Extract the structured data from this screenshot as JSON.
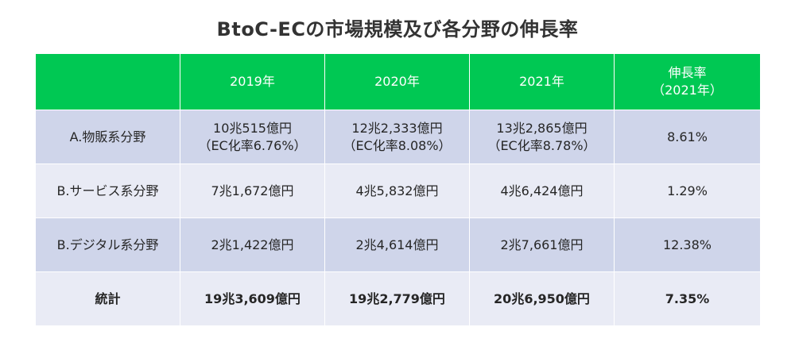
{
  "title": "BtoC-ECの市場規模及び各分野の伸長率",
  "table": {
    "headers": [
      "",
      "2019年",
      "2020年",
      "2021年",
      "伸長率",
      "（2021年）"
    ],
    "rows": [
      {
        "label": "A.物販系分野",
        "y2019": "10兆515億円",
        "y2019_sub": "（EC化率6.76%）",
        "y2020": "12兆2,333億円",
        "y2020_sub": "（EC化率8.08%）",
        "y2021": "13兆2,865億円",
        "y2021_sub": "（EC化率8.78%）",
        "growth": "8.61%"
      },
      {
        "label": "B.サービス系分野",
        "y2019": "7兆1,672億円",
        "y2020": "4兆5,832億円",
        "y2021": "4兆6,424億円",
        "growth": "1.29%"
      },
      {
        "label": "B.デジタル系分野",
        "y2019": "2兆1,422億円",
        "y2020": "2兆4,614億円",
        "y2021": "2兆7,661億円",
        "growth": "12.38%"
      },
      {
        "label": "統計",
        "y2019": "19兆3,609億円",
        "y2020": "19兆2,779億円",
        "y2021": "20兆6,950億円",
        "growth": "7.35%"
      }
    ]
  },
  "colors": {
    "header_bg": "#00c853",
    "row_dark": "#cfd5ea",
    "row_light": "#e9ebf5"
  }
}
